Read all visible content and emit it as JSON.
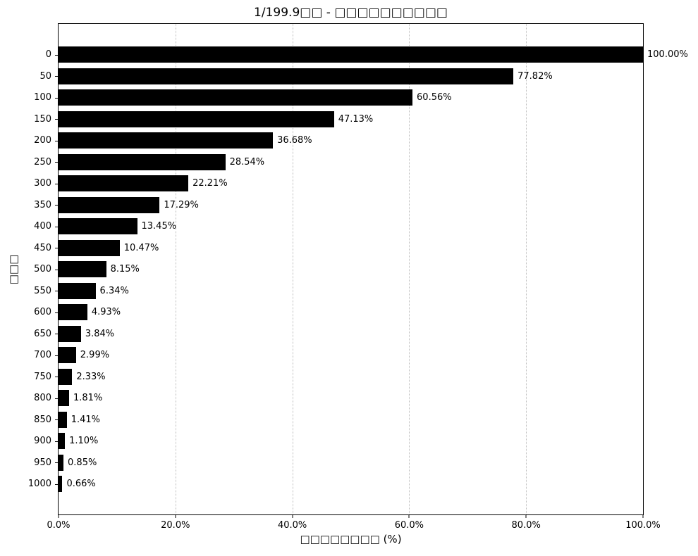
{
  "chart_data": {
    "type": "bar",
    "orientation": "horizontal",
    "title": "1/199.9□□ - □□□□□□□□□□",
    "xlabel": "□□□□□□□□ (%)",
    "ylabel": "□□□",
    "categories": [
      "0",
      "50",
      "100",
      "150",
      "200",
      "250",
      "300",
      "350",
      "400",
      "450",
      "500",
      "550",
      "600",
      "650",
      "700",
      "750",
      "800",
      "850",
      "900",
      "950",
      "1000"
    ],
    "values": [
      100.0,
      77.82,
      60.56,
      47.13,
      36.68,
      28.54,
      22.21,
      17.29,
      13.45,
      10.47,
      8.15,
      6.34,
      4.93,
      3.84,
      2.99,
      2.33,
      1.81,
      1.41,
      1.1,
      0.85,
      0.66
    ],
    "value_labels": [
      "100.00%",
      "77.82%",
      "60.56%",
      "47.13%",
      "36.68%",
      "28.54%",
      "22.21%",
      "17.29%",
      "13.45%",
      "10.47%",
      "8.15%",
      "6.34%",
      "4.93%",
      "3.84%",
      "2.99%",
      "2.33%",
      "1.81%",
      "1.41%",
      "1.10%",
      "0.85%",
      "0.66%"
    ],
    "xlim": [
      0,
      100
    ],
    "xticks": [
      {
        "value": 0,
        "label": "0.0%"
      },
      {
        "value": 20,
        "label": "20.0%"
      },
      {
        "value": 40,
        "label": "40.0%"
      },
      {
        "value": 60,
        "label": "60.0%"
      },
      {
        "value": 80,
        "label": "80.0%"
      },
      {
        "value": 100,
        "label": "100.0%"
      }
    ],
    "grid": true,
    "grid_style": "dotted",
    "legend": "none",
    "bar_color": "#000000",
    "grid_color": "#bcbcbc",
    "background_color": "#ffffff"
  }
}
